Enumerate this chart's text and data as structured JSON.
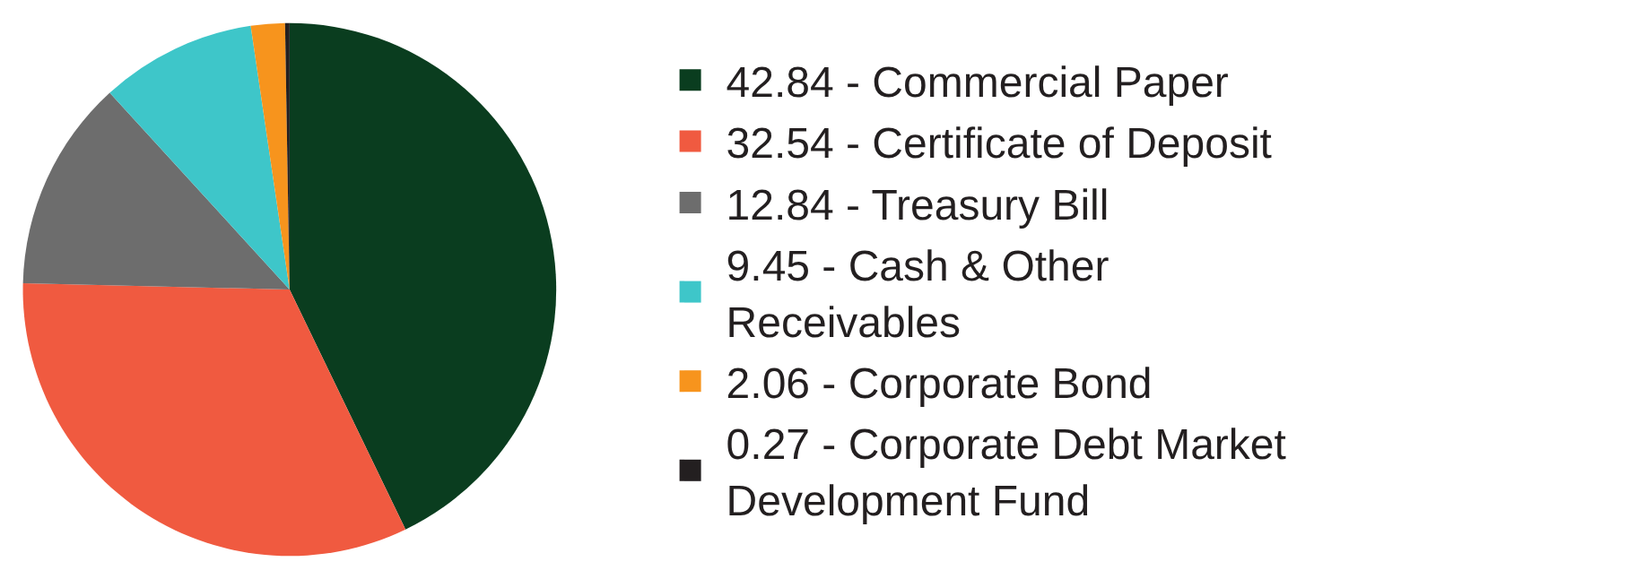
{
  "chart_data": {
    "type": "pie",
    "categories": [
      "Commercial Paper",
      "Certificate of Deposit",
      "Treasury Bill",
      "Cash & Other Receivables",
      "Corporate Bond",
      "Corporate Debt Market Development Fund"
    ],
    "values": [
      42.84,
      32.54,
      12.84,
      9.45,
      2.06,
      0.27
    ],
    "value_labels": [
      "42.84",
      "32.54",
      "12.84",
      "9.45",
      "2.06",
      "0.27"
    ],
    "colors": [
      "#0a3d1f",
      "#f05a40",
      "#6d6d6d",
      "#3ec6c9",
      "#f7941d",
      "#231f20"
    ],
    "legend": "right"
  }
}
